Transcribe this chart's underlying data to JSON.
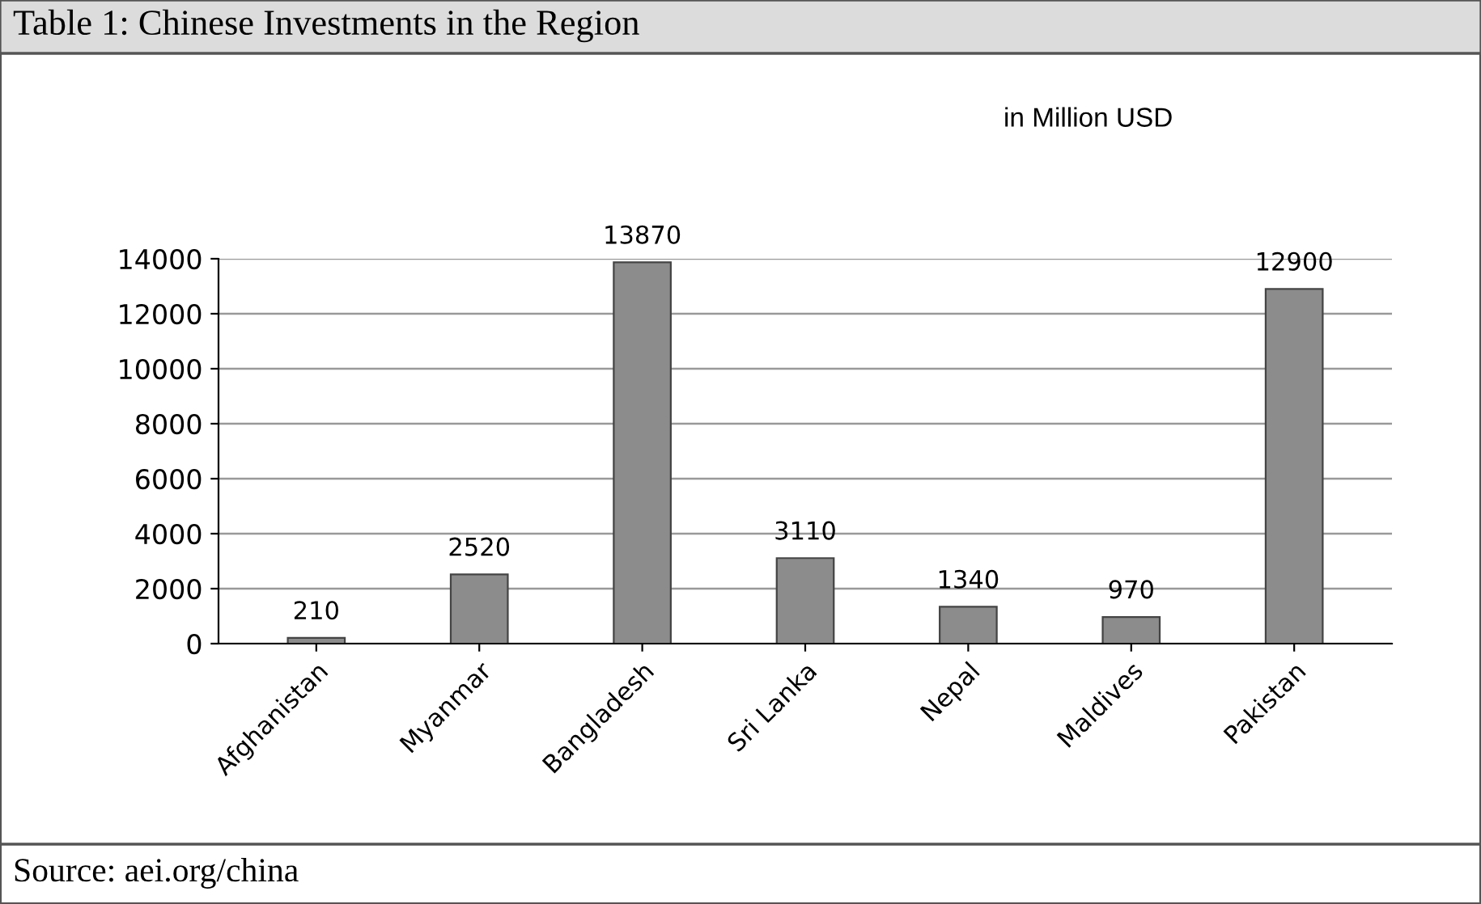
{
  "chart_data": {
    "type": "bar",
    "title": "Table 1: Chinese Investments in the Region",
    "categories": [
      "Afghanistan",
      "Myanmar",
      "Bangladesh",
      "Sri Lanka",
      "Nepal",
      "Maldives",
      "Pakistan"
    ],
    "values": [
      210,
      2520,
      13870,
      3110,
      1340,
      970,
      12900
    ],
    "color": "#8c8c8c",
    "ylim": [
      0,
      14000
    ],
    "yticks": [
      0,
      2000,
      4000,
      6000,
      8000,
      10000,
      12000,
      14000
    ],
    "grid": "y",
    "data_labels": true,
    "legend": false,
    "annotations": [
      "in Million USD",
      "Source: aei.org/china"
    ]
  }
}
